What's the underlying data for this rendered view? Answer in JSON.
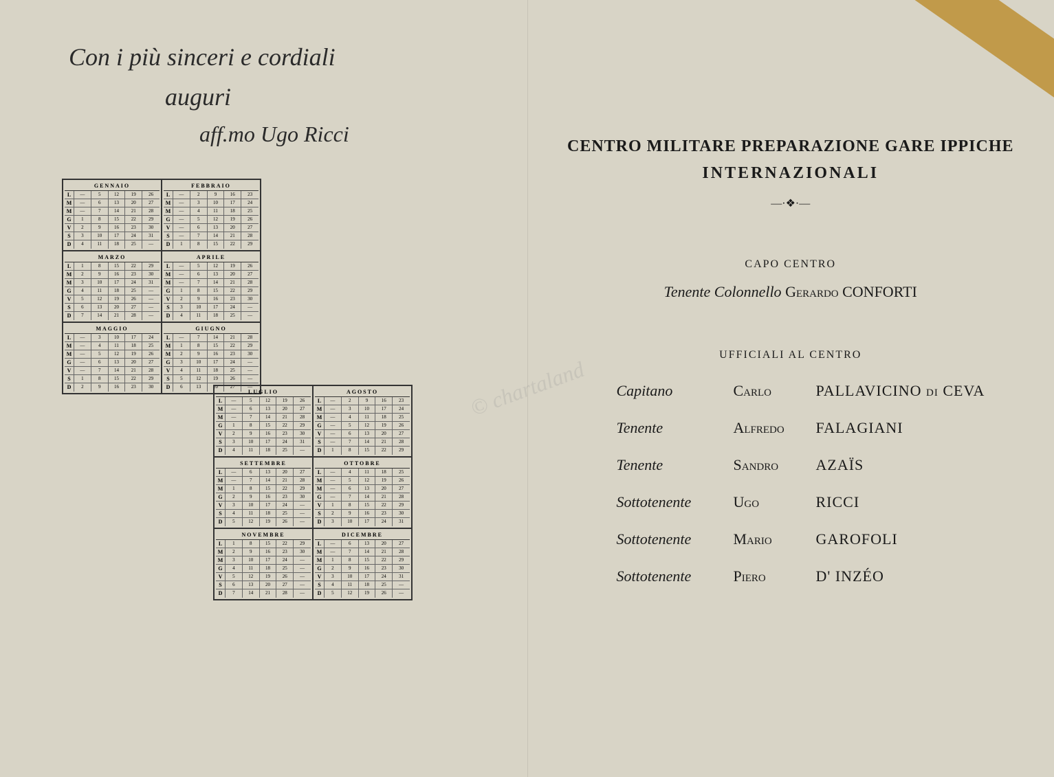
{
  "handwriting": {
    "line1": "Con i più sinceri e cordiali",
    "line2": "auguri",
    "signature": "aff.mo Ugo Ricci"
  },
  "calendars": {
    "dayLabels": [
      "L",
      "M",
      "M",
      "G",
      "V",
      "S",
      "D"
    ],
    "block1": {
      "months": [
        {
          "name": "GENNAIO",
          "rows": [
            [
              "—",
              "5",
              "12",
              "19",
              "26"
            ],
            [
              "—",
              "6",
              "13",
              "20",
              "27"
            ],
            [
              "—",
              "7",
              "14",
              "21",
              "28"
            ],
            [
              "1",
              "8",
              "15",
              "22",
              "29"
            ],
            [
              "2",
              "9",
              "16",
              "23",
              "30"
            ],
            [
              "3",
              "10",
              "17",
              "24",
              "31"
            ],
            [
              "4",
              "11",
              "18",
              "25",
              "—"
            ]
          ]
        },
        {
          "name": "FEBBRAIO",
          "rows": [
            [
              "—",
              "2",
              "9",
              "16",
              "23"
            ],
            [
              "—",
              "3",
              "10",
              "17",
              "24"
            ],
            [
              "—",
              "4",
              "11",
              "18",
              "25"
            ],
            [
              "—",
              "5",
              "12",
              "19",
              "26"
            ],
            [
              "—",
              "6",
              "13",
              "20",
              "27"
            ],
            [
              "—",
              "7",
              "14",
              "21",
              "28"
            ],
            [
              "1",
              "8",
              "15",
              "22",
              "29"
            ]
          ]
        },
        {
          "name": "MARZO",
          "rows": [
            [
              "1",
              "8",
              "15",
              "22",
              "29"
            ],
            [
              "2",
              "9",
              "16",
              "23",
              "30"
            ],
            [
              "3",
              "10",
              "17",
              "24",
              "31"
            ],
            [
              "4",
              "11",
              "18",
              "25",
              "—"
            ],
            [
              "5",
              "12",
              "19",
              "26",
              "—"
            ],
            [
              "6",
              "13",
              "20",
              "27",
              "—"
            ],
            [
              "7",
              "14",
              "21",
              "28",
              "—"
            ]
          ]
        },
        {
          "name": "APRILE",
          "rows": [
            [
              "—",
              "5",
              "12",
              "19",
              "26"
            ],
            [
              "—",
              "6",
              "13",
              "20",
              "27"
            ],
            [
              "—",
              "7",
              "14",
              "21",
              "28"
            ],
            [
              "1",
              "8",
              "15",
              "22",
              "29"
            ],
            [
              "2",
              "9",
              "16",
              "23",
              "30"
            ],
            [
              "3",
              "10",
              "17",
              "24",
              "—"
            ],
            [
              "4",
              "11",
              "18",
              "25",
              "—"
            ]
          ]
        },
        {
          "name": "MAGGIO",
          "rows": [
            [
              "—",
              "3",
              "10",
              "17",
              "24"
            ],
            [
              "—",
              "4",
              "11",
              "18",
              "25"
            ],
            [
              "—",
              "5",
              "12",
              "19",
              "26"
            ],
            [
              "—",
              "6",
              "13",
              "20",
              "27"
            ],
            [
              "—",
              "7",
              "14",
              "21",
              "28"
            ],
            [
              "1",
              "8",
              "15",
              "22",
              "29"
            ],
            [
              "2",
              "9",
              "16",
              "23",
              "30"
            ]
          ]
        },
        {
          "name": "GIUGNO",
          "rows": [
            [
              "—",
              "7",
              "14",
              "21",
              "28"
            ],
            [
              "1",
              "8",
              "15",
              "22",
              "29"
            ],
            [
              "2",
              "9",
              "16",
              "23",
              "30"
            ],
            [
              "3",
              "10",
              "17",
              "24",
              "—"
            ],
            [
              "4",
              "11",
              "18",
              "25",
              "—"
            ],
            [
              "5",
              "12",
              "19",
              "26",
              "—"
            ],
            [
              "6",
              "13",
              "20",
              "27",
              "—"
            ]
          ]
        }
      ]
    },
    "block2": {
      "months": [
        {
          "name": "LUGLIO",
          "rows": [
            [
              "—",
              "5",
              "12",
              "19",
              "26"
            ],
            [
              "—",
              "6",
              "13",
              "20",
              "27"
            ],
            [
              "—",
              "7",
              "14",
              "21",
              "28"
            ],
            [
              "1",
              "8",
              "15",
              "22",
              "29"
            ],
            [
              "2",
              "9",
              "16",
              "23",
              "30"
            ],
            [
              "3",
              "10",
              "17",
              "24",
              "31"
            ],
            [
              "4",
              "11",
              "18",
              "25",
              "—"
            ]
          ]
        },
        {
          "name": "AGOSTO",
          "rows": [
            [
              "—",
              "2",
              "9",
              "16",
              "23"
            ],
            [
              "—",
              "3",
              "10",
              "17",
              "24"
            ],
            [
              "—",
              "4",
              "11",
              "18",
              "25"
            ],
            [
              "—",
              "5",
              "12",
              "19",
              "26"
            ],
            [
              "—",
              "6",
              "13",
              "20",
              "27"
            ],
            [
              "—",
              "7",
              "14",
              "21",
              "28"
            ],
            [
              "1",
              "8",
              "15",
              "22",
              "29"
            ]
          ]
        },
        {
          "name": "SETTEMBRE",
          "rows": [
            [
              "—",
              "6",
              "13",
              "20",
              "27"
            ],
            [
              "—",
              "7",
              "14",
              "21",
              "28"
            ],
            [
              "1",
              "8",
              "15",
              "22",
              "29"
            ],
            [
              "2",
              "9",
              "16",
              "23",
              "30"
            ],
            [
              "3",
              "10",
              "17",
              "24",
              "—"
            ],
            [
              "4",
              "11",
              "18",
              "25",
              "—"
            ],
            [
              "5",
              "12",
              "19",
              "26",
              "—"
            ]
          ]
        },
        {
          "name": "OTTOBRE",
          "rows": [
            [
              "—",
              "4",
              "11",
              "18",
              "25"
            ],
            [
              "—",
              "5",
              "12",
              "19",
              "26"
            ],
            [
              "—",
              "6",
              "13",
              "20",
              "27"
            ],
            [
              "—",
              "7",
              "14",
              "21",
              "28"
            ],
            [
              "1",
              "8",
              "15",
              "22",
              "29"
            ],
            [
              "2",
              "9",
              "16",
              "23",
              "30"
            ],
            [
              "3",
              "10",
              "17",
              "24",
              "31"
            ]
          ]
        },
        {
          "name": "NOVEMBRE",
          "rows": [
            [
              "1",
              "8",
              "15",
              "22",
              "29"
            ],
            [
              "2",
              "9",
              "16",
              "23",
              "30"
            ],
            [
              "3",
              "10",
              "17",
              "24",
              "—"
            ],
            [
              "4",
              "11",
              "18",
              "25",
              "—"
            ],
            [
              "5",
              "12",
              "19",
              "26",
              "—"
            ],
            [
              "6",
              "13",
              "20",
              "27",
              "—"
            ],
            [
              "7",
              "14",
              "21",
              "28",
              "—"
            ]
          ]
        },
        {
          "name": "DICEMBRE",
          "rows": [
            [
              "—",
              "6",
              "13",
              "20",
              "27"
            ],
            [
              "—",
              "7",
              "14",
              "21",
              "28"
            ],
            [
              "1",
              "8",
              "15",
              "22",
              "29"
            ],
            [
              "2",
              "9",
              "16",
              "23",
              "30"
            ],
            [
              "3",
              "10",
              "17",
              "24",
              "31"
            ],
            [
              "4",
              "11",
              "18",
              "25",
              "—"
            ],
            [
              "5",
              "12",
              "19",
              "26",
              "—"
            ]
          ]
        }
      ]
    }
  },
  "title": {
    "main": "CENTRO MILITARE PREPARAZIONE GARE IPPICHE",
    "sub": "INTERNAZIONALI"
  },
  "ornament": "—·❖·—",
  "capoSection": {
    "label": "CAPO CENTRO",
    "rank": "Tenente Colonnello",
    "firstname": "Gerardo",
    "surname": "CONFORTI"
  },
  "officersSection": {
    "label": "UFFICIALI AL CENTRO",
    "list": [
      {
        "rank": "Capitano",
        "firstname": "Carlo",
        "surname": "PALLAVICINO",
        "suffix": "di",
        "surname2": "CEVA"
      },
      {
        "rank": "Tenente",
        "firstname": "Alfredo",
        "surname": "FALAGIANI"
      },
      {
        "rank": "Tenente",
        "firstname": "Sandro",
        "surname": "AZAÏS"
      },
      {
        "rank": "Sottotenente",
        "firstname": "Ugo",
        "surname": "RICCI"
      },
      {
        "rank": "Sottotenente",
        "firstname": "Mario",
        "surname": "GAROFOLI"
      },
      {
        "rank": "Sottotenente",
        "firstname": "Piero",
        "surname": "D' INZÉO"
      }
    ]
  },
  "watermark": "© chartaland",
  "colors": {
    "paper": "#d8d4c6",
    "ink": "#1a1a1a",
    "ribbon": "#c19a4a"
  }
}
